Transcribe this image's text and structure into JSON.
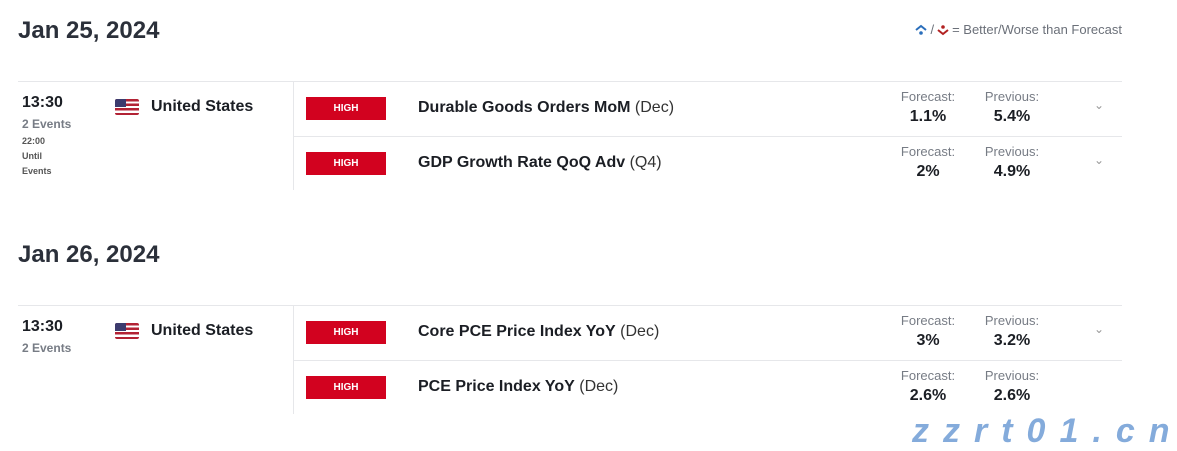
{
  "legend": {
    "text": "= Better/Worse than Forecast",
    "better_color": "#2a6ebb",
    "worse_color": "#b22222"
  },
  "days": [
    {
      "date": "Jan 25, 2024",
      "time": "13:30",
      "events_count": "2 Events",
      "until_time": "22:00",
      "until_l1": "Until",
      "until_l2": "Events",
      "country": "United States",
      "events": [
        {
          "importance": "HIGH",
          "name": "Durable Goods Orders MoM",
          "period": "(Dec)",
          "forecast_label": "Forecast:",
          "forecast": "1.1%",
          "previous_label": "Previous:",
          "previous": "5.4%"
        },
        {
          "importance": "HIGH",
          "name": "GDP Growth Rate QoQ Adv",
          "period": "(Q4)",
          "forecast_label": "Forecast:",
          "forecast": "2%",
          "previous_label": "Previous:",
          "previous": "4.9%"
        }
      ]
    },
    {
      "date": "Jan 26, 2024",
      "time": "13:30",
      "events_count": "2 Events",
      "country": "United States",
      "events": [
        {
          "importance": "HIGH",
          "name": "Core PCE Price Index YoY",
          "period": "(Dec)",
          "forecast_label": "Forecast:",
          "forecast": "3%",
          "previous_label": "Previous:",
          "previous": "3.2%"
        },
        {
          "importance": "HIGH",
          "name": "PCE Price Index YoY",
          "period": "(Dec)",
          "forecast_label": "Forecast:",
          "forecast": "2.6%",
          "previous_label": "Previous:",
          "previous": "2.6%"
        }
      ]
    }
  ],
  "watermark": "zzrt01.cn"
}
